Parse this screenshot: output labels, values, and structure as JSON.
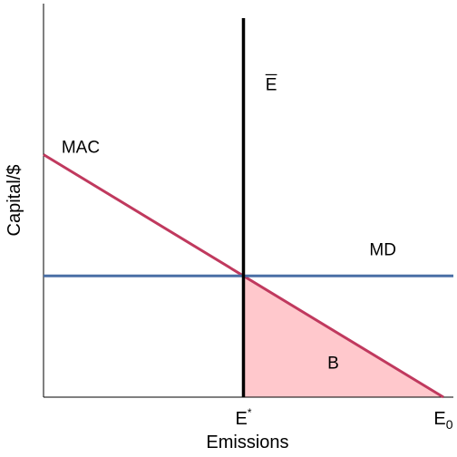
{
  "chart_data": {
    "type": "line",
    "title": "",
    "xlabel": "Emissions",
    "ylabel": "Capital/$",
    "xlim": [
      0,
      10
    ],
    "ylim": [
      0,
      10
    ],
    "grid": false,
    "legend": "none",
    "x_ticks": [
      {
        "x": 5,
        "label": "E",
        "sup": "*",
        "sub": ""
      },
      {
        "x": 10,
        "label": "E",
        "sup": "",
        "sub": "0"
      }
    ],
    "series": [
      {
        "name": "MAC",
        "color": "#c0395e",
        "x": [
          0,
          10
        ],
        "y": [
          6.4,
          0
        ]
      },
      {
        "name": "MD",
        "color": "#4a6fa5",
        "x": [
          0,
          10
        ],
        "y": [
          3.2,
          3.2
        ]
      },
      {
        "name": "Ē",
        "color": "#000000",
        "x": [
          5,
          5
        ],
        "y": [
          0,
          10
        ]
      }
    ],
    "shaded_region": {
      "label": "B",
      "fill": "#ffc8cc",
      "points": [
        [
          5,
          0
        ],
        [
          5,
          3.2
        ],
        [
          10,
          0
        ]
      ]
    },
    "annotations": [
      {
        "text": "MAC",
        "x": 0.45,
        "y": 6.45
      },
      {
        "text": "MD",
        "x": 8.15,
        "y": 3.75
      },
      {
        "text": "E",
        "overline": true,
        "x": 5.55,
        "y": 8.1
      },
      {
        "text": "B",
        "x": 7.1,
        "y": 0.75
      }
    ]
  }
}
